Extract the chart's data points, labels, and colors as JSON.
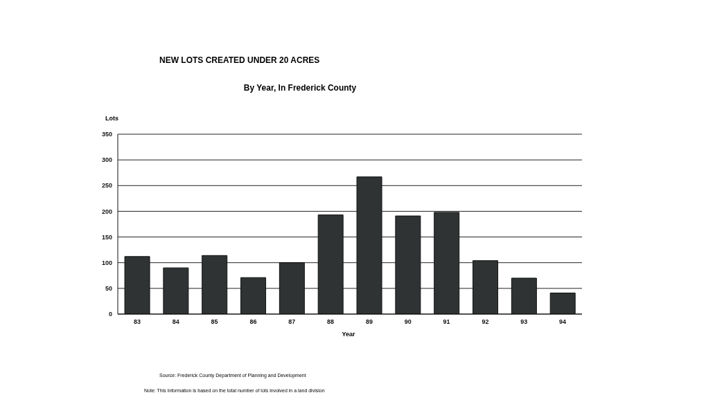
{
  "chart_data": {
    "type": "bar",
    "title": "NEW LOTS CREATED UNDER 20 ACRES",
    "subtitle": "By Year, In Frederick County",
    "xlabel": "Year",
    "ylabel": "Lots",
    "categories": [
      "83",
      "84",
      "85",
      "86",
      "87",
      "88",
      "89",
      "90",
      "91",
      "92",
      "93",
      "94"
    ],
    "values": [
      112,
      90,
      114,
      71,
      100,
      193,
      267,
      191,
      198,
      104,
      70,
      41
    ],
    "color": "#2f3333",
    "ylim": [
      0,
      350
    ],
    "yticks": [
      0,
      50,
      100,
      150,
      200,
      250,
      300,
      350
    ],
    "grid": "y",
    "annotations": [
      "Source: Frederick County Department of Planning and Development",
      "Note: This information is based on the total number of lots involved in a land division"
    ]
  }
}
